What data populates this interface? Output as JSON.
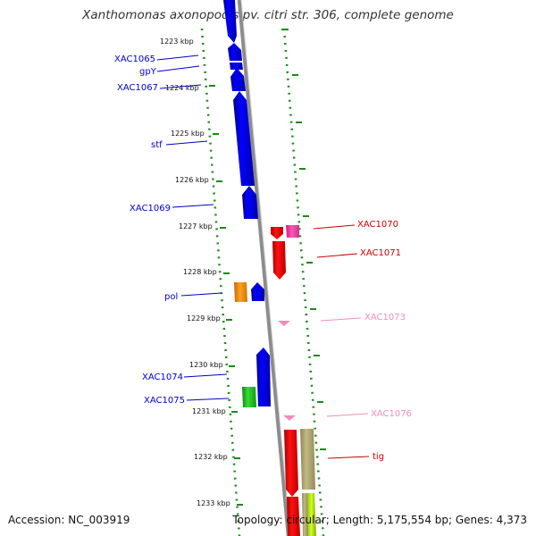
{
  "title": "Xanthomonas axonopodis pv. citri str. 306, complete genome",
  "footer": {
    "accession": "Accession: NC_003919",
    "meta": "Topology: circular; Length: 5,175,554 bp; Genes: 4,373"
  },
  "scale_ticks": [
    "1223 kbp",
    "1224 kbp",
    "1225 kbp",
    "1226 kbp",
    "1227 kbp",
    "1228 kbp",
    "1229 kbp",
    "1230 kbp",
    "1231 kbp",
    "1232 kbp",
    "1233 kbp"
  ],
  "colors": {
    "forward": "#0000ee",
    "reverse": "#dd0000",
    "reverse_pale": "#f08cbd",
    "axis": "#8c8c8c",
    "track_dots": "#1a8a1a"
  },
  "genes_left": [
    {
      "label": "XAC1065",
      "color": "#0000cc"
    },
    {
      "label": "gpY",
      "color": "#0000cc"
    },
    {
      "label": "XAC1067",
      "color": "#0000cc"
    },
    {
      "label": "stf",
      "color": "#0000cc"
    },
    {
      "label": "XAC1069",
      "color": "#0000cc"
    },
    {
      "label": "pol",
      "color": "#0000cc"
    },
    {
      "label": "XAC1074",
      "color": "#0000cc"
    },
    {
      "label": "XAC1075",
      "color": "#0000cc"
    }
  ],
  "genes_right": [
    {
      "label": "XAC1070",
      "color": "#cc0000"
    },
    {
      "label": "XAC1071",
      "color": "#cc0000"
    },
    {
      "label": "XAC1073",
      "color": "#f08cbd"
    },
    {
      "label": "XAC1076",
      "color": "#f08cbd"
    },
    {
      "label": "tig",
      "color": "#cc0000"
    }
  ]
}
